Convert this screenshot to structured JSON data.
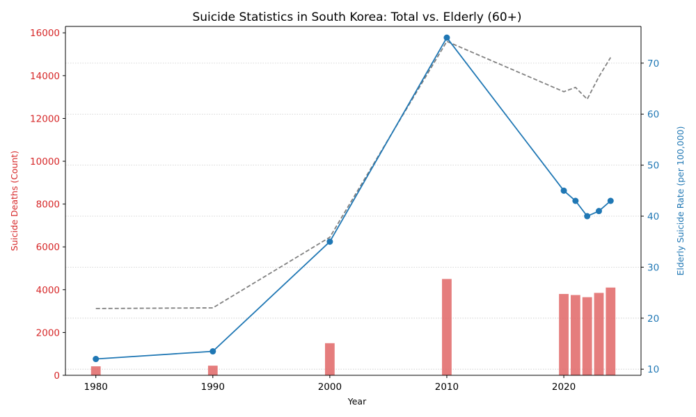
{
  "chart_data": {
    "type": "bar+line",
    "title": "Suicide Statistics in South Korea: Total vs. Elderly (60+)",
    "xlabel": "Year",
    "ylabel_left": "Suicide Deaths (Count)",
    "ylabel_right": "Elderly Suicide Rate (per 100,000)",
    "xlim": [
      1977.4,
      2026.6
    ],
    "ylim_left": [
      0,
      16300
    ],
    "ylim_right": [
      8.8,
      77.2
    ],
    "x_ticks": [
      1980,
      1990,
      2000,
      2010,
      2020
    ],
    "y_left_ticks": [
      0,
      2000,
      4000,
      6000,
      8000,
      10000,
      12000,
      14000,
      16000
    ],
    "y_right_ticks": [
      10,
      20,
      30,
      40,
      50,
      60,
      70
    ],
    "grid": "horizontal, dotted, right-axis ticks",
    "colors": {
      "bars": "#e06666",
      "left_axis": "#d62728",
      "rate_line": "#1f77b4",
      "total_line": "#808080",
      "grid": "#c8c8c8"
    },
    "series": [
      {
        "kind": "bar",
        "axis": "left",
        "x": [
          1980,
          1990,
          2000,
          2010,
          2020,
          2021,
          2022,
          2023,
          2024
        ],
        "values": [
          420,
          450,
          1500,
          4500,
          3800,
          3750,
          3650,
          3850,
          4100
        ]
      },
      {
        "kind": "line",
        "style": "dashed",
        "axis": "left",
        "x": [
          1980,
          1990,
          2000,
          2010,
          2020,
          2021,
          2022,
          2023,
          2024
        ],
        "values": [
          3120,
          3150,
          6450,
          15600,
          13250,
          13450,
          12900,
          13950,
          14850
        ]
      },
      {
        "kind": "line",
        "style": "solid-markers",
        "axis": "right",
        "x": [
          1980,
          1990,
          2000,
          2010,
          2020,
          2021,
          2022,
          2023,
          2024
        ],
        "values": [
          12,
          13.5,
          35,
          75,
          45,
          43,
          40,
          41,
          43
        ]
      }
    ]
  }
}
